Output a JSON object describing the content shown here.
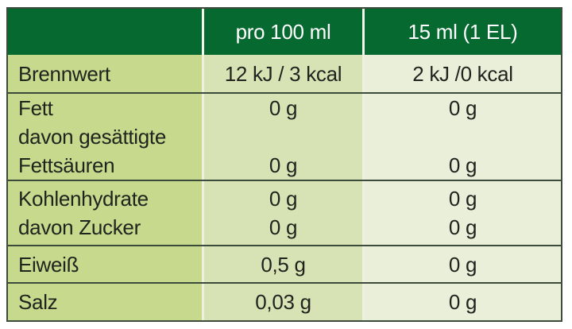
{
  "header": {
    "col_label": "",
    "col_per100": "pro 100 ml",
    "col_serving": "15 ml (1 EL)"
  },
  "rows": [
    {
      "label": [
        "Brennwert"
      ],
      "per100": [
        "12 kJ / 3 kcal"
      ],
      "serving": [
        "2 kJ /0 kcal"
      ]
    },
    {
      "label": [
        "Fett",
        "davon gesättigte",
        "Fettsäuren"
      ],
      "per100": [
        "0 g",
        "",
        "0 g"
      ],
      "serving": [
        "0 g",
        "",
        "0 g"
      ]
    },
    {
      "label": [
        "Kohlenhydrate",
        "davon Zucker"
      ],
      "per100": [
        "0 g",
        "0 g"
      ],
      "serving": [
        "0 g",
        "0 g"
      ]
    },
    {
      "label": [
        "Eiweiß"
      ],
      "per100": [
        "0,5 g"
      ],
      "serving": [
        "0 g"
      ]
    },
    {
      "label": [
        "Salz"
      ],
      "per100": [
        "0,03 g"
      ],
      "serving": [
        "0 g"
      ]
    }
  ],
  "colors": {
    "header_bg": "#066a30",
    "header_text": "#ffffff",
    "label_col_bg": "#c6d98c",
    "per100_col_bg": "#d8e3b5",
    "serving_col_bg": "#e9efd9",
    "grid_line": "#3c4b3c",
    "column_divider": "#eff1de",
    "body_text": "#20241e",
    "page_bg": "#ffffff"
  }
}
